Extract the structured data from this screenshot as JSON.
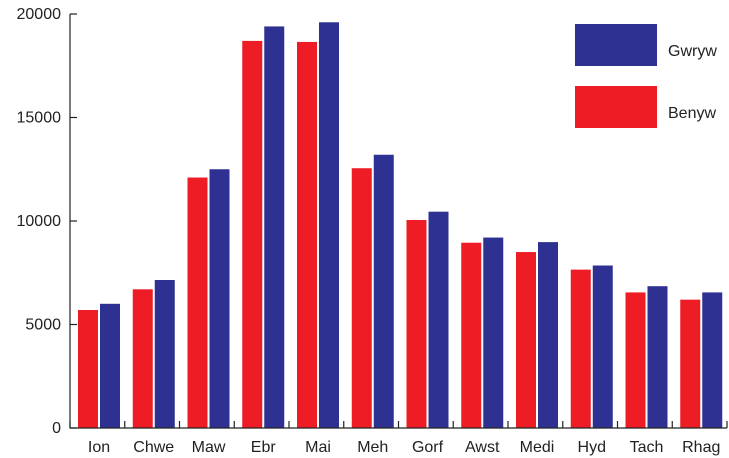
{
  "chart_data": {
    "type": "bar",
    "title": "",
    "xlabel": "",
    "ylabel": "",
    "categories": [
      "Ion",
      "Chwe",
      "Maw",
      "Ebr",
      "Mai",
      "Meh",
      "Gorf",
      "Awst",
      "Medi",
      "Hyd",
      "Tach",
      "Rhag"
    ],
    "series": [
      {
        "name": "Benyw",
        "color": "#ee1c25",
        "values": [
          5700,
          6700,
          12100,
          18700,
          18650,
          12550,
          10050,
          8950,
          8500,
          7650,
          6550,
          6200
        ]
      },
      {
        "name": "Gwryw",
        "color": "#2e3192",
        "values": [
          6000,
          7150,
          12500,
          19400,
          19600,
          13200,
          10450,
          9200,
          8980,
          7850,
          6850,
          6550
        ]
      }
    ],
    "ylim": [
      0,
      20000
    ],
    "yticks": [
      "0",
      "5000",
      "10000",
      "15000",
      "20000"
    ],
    "ytick_values": [
      0,
      5000,
      10000,
      15000,
      20000
    ],
    "grid": false,
    "legend_position": "top-right"
  }
}
